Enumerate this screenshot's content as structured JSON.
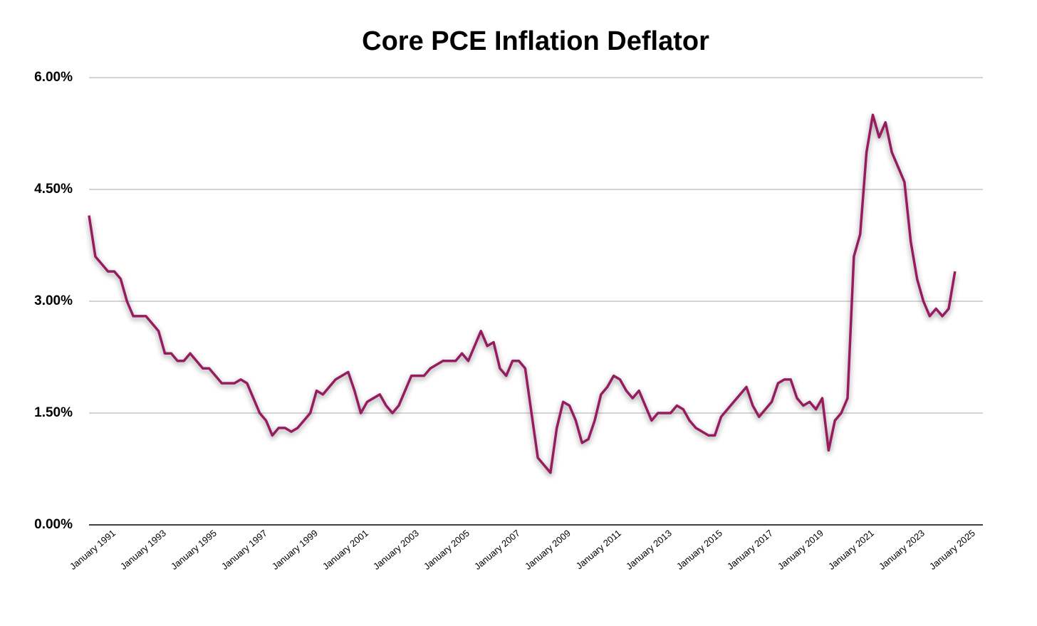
{
  "chart_data": {
    "type": "line",
    "title": "Core PCE Inflation Deflator",
    "categories": [
      "January 1991",
      null,
      null,
      null,
      null,
      null,
      null,
      null,
      "January 1993",
      null,
      null,
      null,
      null,
      null,
      null,
      null,
      "January 1995",
      null,
      null,
      null,
      null,
      null,
      null,
      null,
      "January 1997",
      null,
      null,
      null,
      null,
      null,
      null,
      null,
      "January 1999",
      null,
      null,
      null,
      null,
      null,
      null,
      null,
      "January 2001",
      null,
      null,
      null,
      null,
      null,
      null,
      null,
      "January 2003",
      null,
      null,
      null,
      null,
      null,
      null,
      null,
      "January 2005",
      null,
      null,
      null,
      null,
      null,
      null,
      null,
      "January 2007",
      null,
      null,
      null,
      null,
      null,
      null,
      null,
      "January 2009",
      null,
      null,
      null,
      null,
      null,
      null,
      null,
      "January 2011",
      null,
      null,
      null,
      null,
      null,
      null,
      null,
      "January 2013",
      null,
      null,
      null,
      null,
      null,
      null,
      null,
      "January 2015",
      null,
      null,
      null,
      null,
      null,
      null,
      null,
      "January 2017",
      null,
      null,
      null,
      null,
      null,
      null,
      null,
      "January 2019",
      null,
      null,
      null,
      null,
      null,
      null,
      null,
      "January 2021",
      null,
      null,
      null,
      null,
      null,
      null,
      null,
      "January 2023",
      null,
      null,
      null,
      null,
      null,
      null,
      null,
      "January 2025",
      null
    ],
    "series": [
      {
        "color": "#951a5f",
        "values": [
          4.15,
          3.6,
          3.5,
          3.4,
          3.4,
          3.3,
          3.0,
          2.8,
          2.8,
          2.8,
          2.7,
          2.6,
          2.3,
          2.3,
          2.2,
          2.2,
          2.3,
          2.2,
          2.1,
          2.1,
          2.0,
          1.9,
          1.9,
          1.9,
          1.95,
          1.9,
          1.7,
          1.5,
          1.4,
          1.2,
          1.3,
          1.3,
          1.25,
          1.3,
          1.4,
          1.5,
          1.8,
          1.75,
          1.85,
          1.95,
          2.0,
          2.05,
          1.8,
          1.5,
          1.65,
          1.7,
          1.75,
          1.6,
          1.5,
          1.6,
          1.8,
          2.0,
          2.0,
          2.0,
          2.1,
          2.15,
          2.2,
          2.2,
          2.2,
          2.3,
          2.2,
          2.4,
          2.6,
          2.4,
          2.45,
          2.1,
          2.0,
          2.2,
          2.2,
          2.1,
          1.5,
          0.9,
          0.8,
          0.7,
          1.3,
          1.65,
          1.6,
          1.4,
          1.1,
          1.15,
          1.4,
          1.75,
          1.85,
          2.0,
          1.95,
          1.8,
          1.7,
          1.8,
          1.6,
          1.4,
          1.5,
          1.5,
          1.5,
          1.6,
          1.55,
          1.4,
          1.3,
          1.25,
          1.2,
          1.2,
          1.45,
          1.55,
          1.65,
          1.75,
          1.85,
          1.6,
          1.45,
          1.55,
          1.65,
          1.9,
          1.95,
          1.95,
          1.7,
          1.6,
          1.65,
          1.55,
          1.7,
          1.0,
          1.4,
          1.5,
          1.7,
          3.6,
          3.9,
          5.0,
          5.5,
          5.2,
          5.4,
          5.0,
          4.8,
          4.6,
          3.8,
          3.3,
          3.0,
          2.8,
          2.9,
          2.8,
          2.9,
          3.4
        ]
      }
    ],
    "ylim": [
      0,
      6
    ],
    "yticks": [
      {
        "value": 0,
        "label": "0.00%"
      },
      {
        "value": 1.5,
        "label": "1.50%"
      },
      {
        "value": 3,
        "label": "3.00%"
      },
      {
        "value": 4.5,
        "label": "4.50%"
      },
      {
        "value": 6,
        "label": "6.00%"
      }
    ],
    "grid": true
  }
}
